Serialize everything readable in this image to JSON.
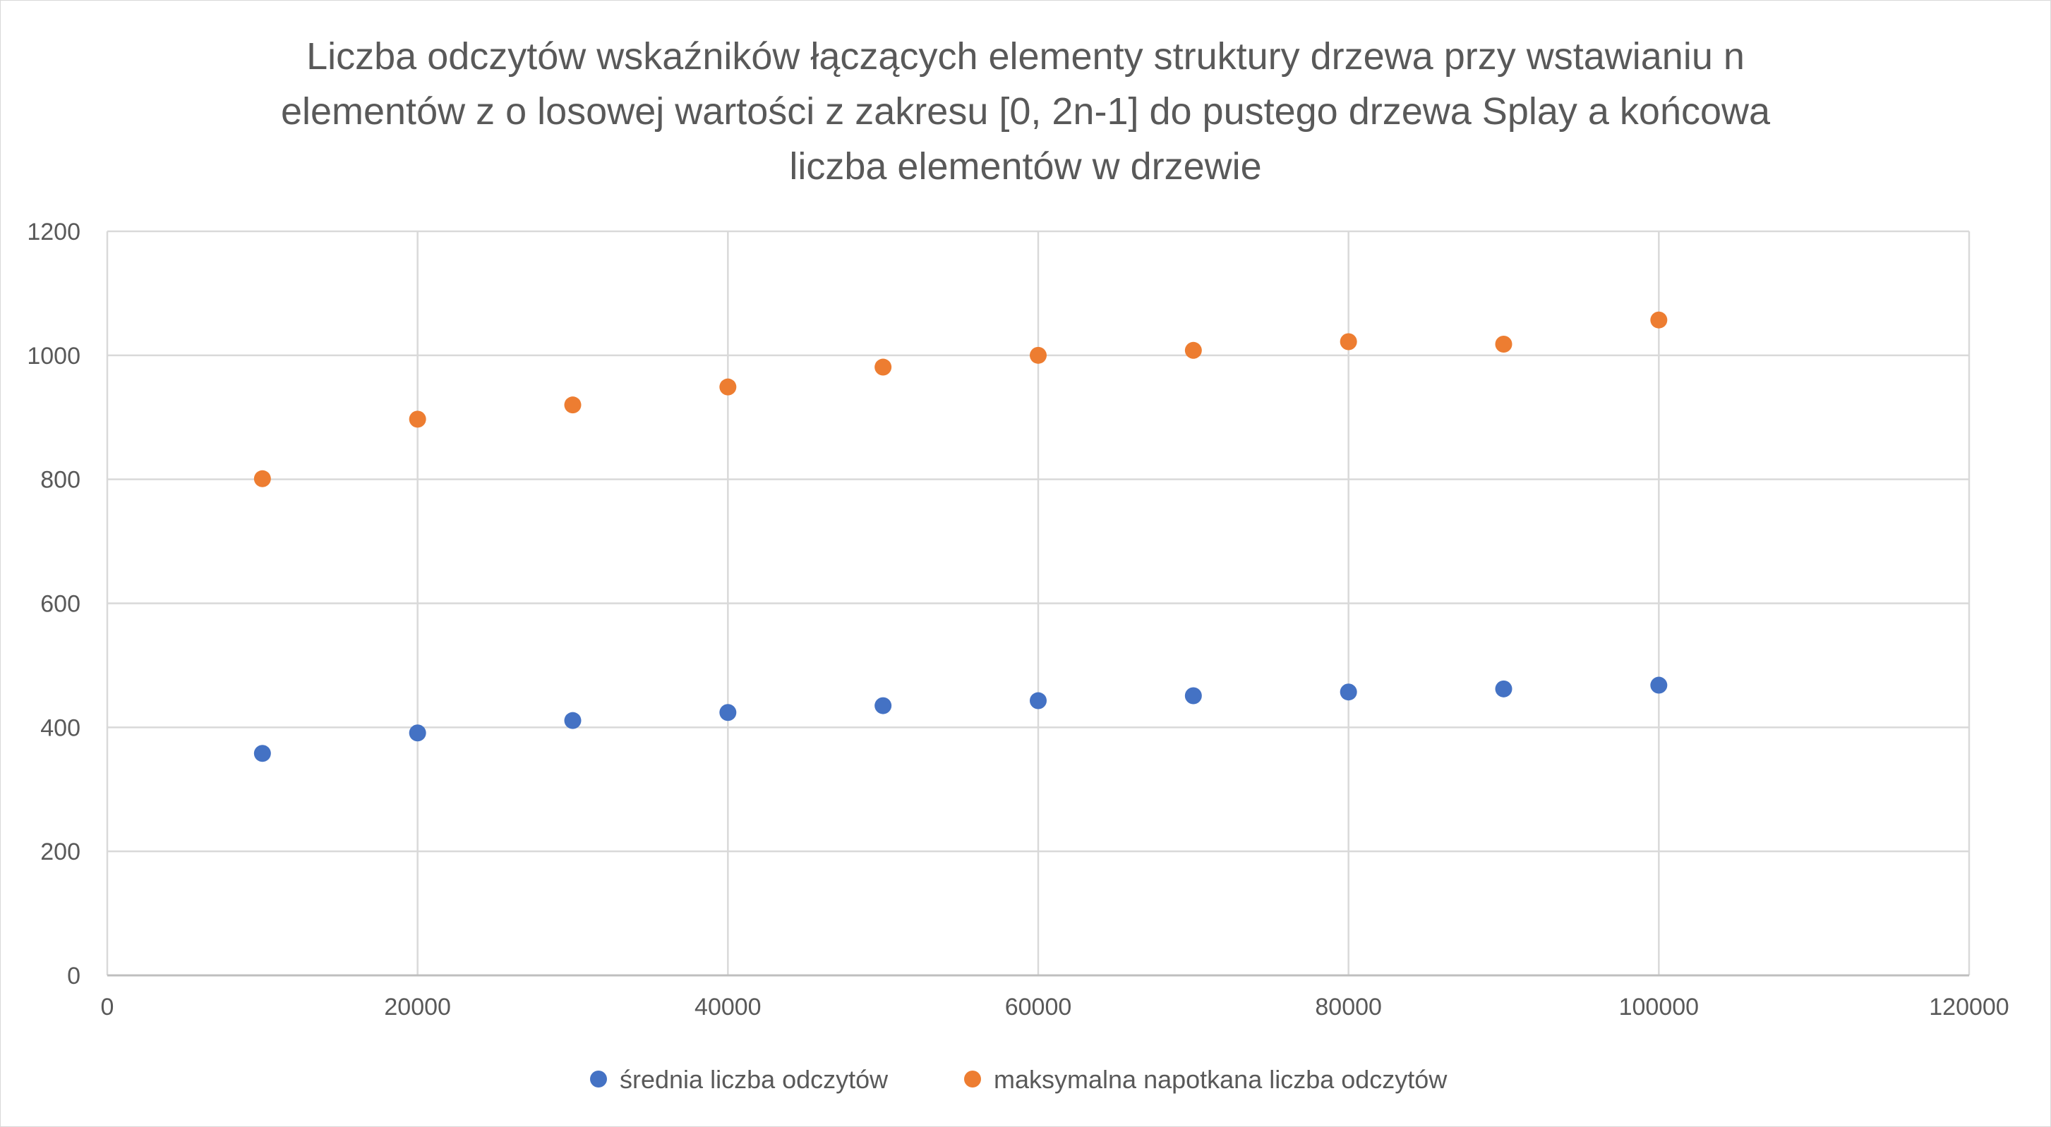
{
  "chart_data": {
    "type": "scatter",
    "title_lines": [
      "Liczba odczytów wskaźników łączących elementy struktury drzewa przy wstawianiu n",
      "elementów z o losowej wartości z zakresu [0, 2n-1] do pustego drzewa Splay a końcowa",
      "liczba elementów w drzewie"
    ],
    "xlim": [
      0,
      120000
    ],
    "ylim": [
      0,
      1200
    ],
    "x_ticks": [
      0,
      20000,
      40000,
      60000,
      80000,
      100000,
      120000
    ],
    "y_ticks": [
      0,
      200,
      400,
      600,
      800,
      1000,
      1200
    ],
    "grid": true,
    "legend_position": "bottom",
    "series": [
      {
        "name": "średnia liczba odczytów",
        "color": "#4472C4",
        "x": [
          10000,
          20000,
          30000,
          40000,
          50000,
          60000,
          70000,
          80000,
          90000,
          100000
        ],
        "y": [
          358,
          391,
          411,
          424,
          435,
          443,
          451,
          457,
          462,
          468
        ]
      },
      {
        "name": "maksymalna napotkana liczba odczytów",
        "color": "#ED7D31",
        "x": [
          10000,
          20000,
          30000,
          40000,
          50000,
          60000,
          70000,
          80000,
          90000,
          100000
        ],
        "y": [
          801,
          897,
          920,
          949,
          981,
          1000,
          1008,
          1022,
          1018,
          1057
        ]
      }
    ]
  }
}
